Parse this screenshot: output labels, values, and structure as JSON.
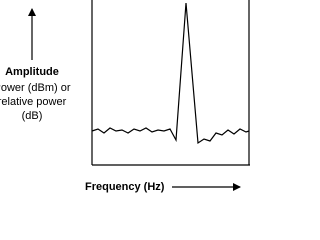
{
  "y_axis": {
    "title": "Amplitude",
    "lines": [
      "Power (dBm) or",
      "relative power",
      "(dB)"
    ]
  },
  "x_axis": {
    "title": "Frequency (Hz)"
  }
}
